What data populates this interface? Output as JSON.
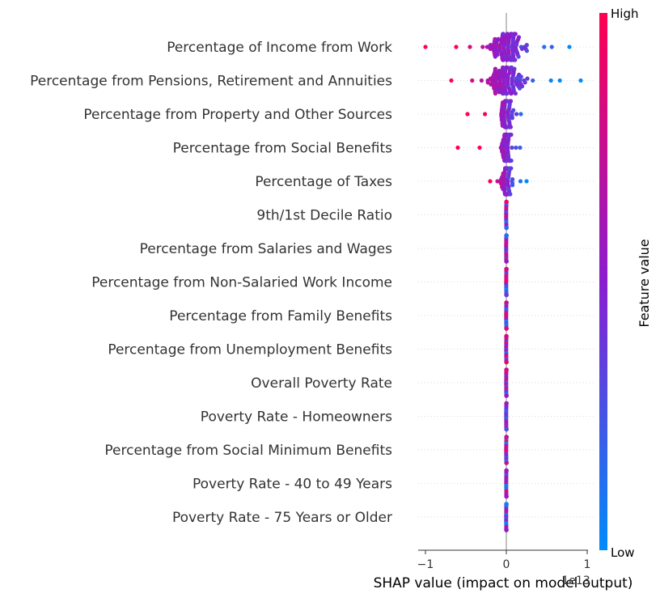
{
  "chart_data": {
    "type": "scatter",
    "subtype": "shap-beeswarm",
    "xlabel": "SHAP value (impact on model output)",
    "x_offset_text": "1e13",
    "xlim": [
      -1.1,
      1.0
    ],
    "xticks": [
      -1,
      0,
      1
    ],
    "xtick_labels": [
      "−1",
      "0",
      "1"
    ],
    "zero_line": true,
    "grid": "dotted horizontal row lines",
    "colorbar": {
      "label": "Feature value",
      "high_label": "High",
      "low_label": "Low",
      "high_color": "#ff0052",
      "mid_color": "#8a1ecf",
      "low_color": "#008bfb",
      "placement": "right"
    },
    "features": [
      {
        "name": "Percentage of Income from Work",
        "spread": [
          -1.0,
          0.78
        ]
      },
      {
        "name": "Percentage from Pensions, Retirement and Annuities",
        "spread": [
          -0.68,
          0.92
        ]
      },
      {
        "name": "Percentage from Property and Other Sources",
        "spread": [
          -0.48,
          0.18
        ]
      },
      {
        "name": "Percentage from Social Benefits",
        "spread": [
          -0.6,
          0.17
        ]
      },
      {
        "name": "Percentage of Taxes",
        "spread": [
          -0.2,
          0.25
        ]
      },
      {
        "name": "9th/1st Decile Ratio",
        "spread": [
          0,
          0
        ]
      },
      {
        "name": "Percentage from Salaries and Wages",
        "spread": [
          0,
          0
        ]
      },
      {
        "name": "Percentage from Non-Salaried Work Income",
        "spread": [
          0,
          0
        ]
      },
      {
        "name": "Percentage from Family Benefits",
        "spread": [
          0,
          0
        ]
      },
      {
        "name": "Percentage from Unemployment Benefits",
        "spread": [
          0,
          0
        ]
      },
      {
        "name": "Overall Poverty Rate",
        "spread": [
          0,
          0
        ]
      },
      {
        "name": "Poverty Rate - Homeowners",
        "spread": [
          0,
          0
        ]
      },
      {
        "name": "Percentage from Social Minimum Benefits",
        "spread": [
          0,
          0
        ]
      },
      {
        "name": "Poverty Rate - 40 to 49 Years",
        "spread": [
          0,
          0
        ]
      },
      {
        "name": "Poverty Rate - 75 Years or Older",
        "spread": [
          0,
          0
        ]
      }
    ]
  }
}
